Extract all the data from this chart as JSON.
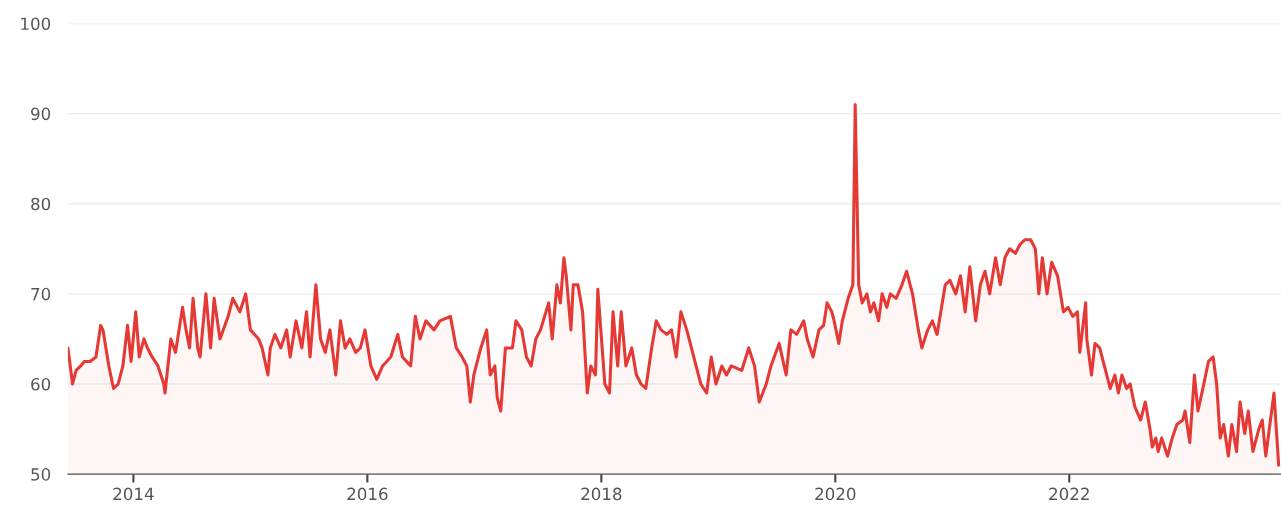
{
  "chart_data": {
    "type": "area",
    "xlim": [
      2013.44,
      2023.81
    ],
    "xticks": [
      2014,
      2016,
      2018,
      2020,
      2022
    ],
    "ylim": [
      50,
      100
    ],
    "yticks": [
      50,
      60,
      70,
      80,
      90,
      100
    ],
    "grid": "y",
    "series": [
      {
        "color": "#e53935",
        "x": [
          2013.44,
          2013.48,
          2013.51,
          2013.55,
          2013.58,
          2013.63,
          2013.68,
          2013.72,
          2013.74,
          2013.79,
          2013.83,
          2013.87,
          2013.91,
          2013.95,
          2013.98,
          2014.02,
          2014.05,
          2014.09,
          2014.12,
          2014.16,
          2014.21,
          2014.26,
          2014.27,
          2014.32,
          2014.36,
          2014.42,
          2014.45,
          2014.48,
          2014.51,
          2014.55,
          2014.57,
          2014.62,
          2014.66,
          2014.69,
          2014.74,
          2014.81,
          2014.85,
          2014.91,
          2014.96,
          2015.0,
          2015.07,
          2015.1,
          2015.15,
          2015.17,
          2015.21,
          2015.26,
          2015.31,
          2015.34,
          2015.39,
          2015.44,
          2015.48,
          2015.51,
          2015.56,
          2015.6,
          2015.64,
          2015.68,
          2015.73,
          2015.77,
          2015.81,
          2015.85,
          2015.9,
          2015.94,
          2015.98,
          2016.03,
          2016.08,
          2016.13,
          2016.2,
          2016.26,
          2016.3,
          2016.37,
          2016.41,
          2016.45,
          2016.5,
          2016.57,
          2016.62,
          2016.71,
          2016.76,
          2016.81,
          2016.85,
          2016.88,
          2016.91,
          2016.97,
          2017.02,
          2017.05,
          2017.09,
          2017.11,
          2017.14,
          2017.18,
          2017.24,
          2017.27,
          2017.32,
          2017.36,
          2017.4,
          2017.44,
          2017.48,
          2017.55,
          2017.58,
          2017.62,
          2017.65,
          2017.68,
          2017.7,
          2017.74,
          2017.76,
          2017.8,
          2017.84,
          2017.88,
          2017.91,
          2017.95,
          2017.97,
          2018.03,
          2018.07,
          2018.1,
          2018.14,
          2018.17,
          2018.21,
          2018.26,
          2018.3,
          2018.34,
          2018.38,
          2018.43,
          2018.47,
          2018.51,
          2018.56,
          2018.6,
          2018.64,
          2018.68,
          2018.73,
          2018.77,
          2018.85,
          2018.9,
          2018.94,
          2018.98,
          2019.03,
          2019.07,
          2019.11,
          2019.2,
          2019.26,
          2019.31,
          2019.35,
          2019.41,
          2019.45,
          2019.52,
          2019.58,
          2019.62,
          2019.67,
          2019.73,
          2019.76,
          2019.81,
          2019.86,
          2019.9,
          2019.93,
          2019.97,
          2019.99,
          2020.03,
          2020.06,
          2020.11,
          2020.15,
          2020.17,
          2020.2,
          2020.23,
          2020.27,
          2020.3,
          2020.33,
          2020.37,
          2020.4,
          2020.44,
          2020.47,
          2020.52,
          2020.57,
          2020.61,
          2020.66,
          2020.71,
          2020.74,
          2020.79,
          2020.83,
          2020.87,
          2020.94,
          2020.98,
          2021.03,
          2021.07,
          2021.11,
          2021.15,
          2021.2,
          2021.24,
          2021.28,
          2021.32,
          2021.37,
          2021.41,
          2021.45,
          2021.49,
          2021.54,
          2021.58,
          2021.62,
          2021.67,
          2021.71,
          2021.74,
          2021.77,
          2021.81,
          2021.85,
          2021.9,
          2021.95,
          2021.99,
          2022.03,
          2022.07,
          2022.09,
          2022.14,
          2022.15,
          2022.19,
          2022.22,
          2022.26,
          2022.32,
          2022.35,
          2022.39,
          2022.42,
          2022.45,
          2022.49,
          2022.52,
          2022.56,
          2022.61,
          2022.65,
          2022.69,
          2022.71,
          2022.74,
          2022.76,
          2022.79,
          2022.84,
          2022.88,
          2022.92,
          2022.97,
          2022.99,
          2023.03,
          2023.07,
          2023.1,
          2023.15,
          2023.19,
          2023.23,
          2023.26,
          2023.29,
          2023.32,
          2023.36,
          2023.39,
          2023.43,
          2023.46,
          2023.5,
          2023.53,
          2023.57,
          2023.62,
          2023.65,
          2023.68,
          2023.72,
          2023.75,
          2023.79
        ],
        "values": [
          64,
          60,
          61.5,
          62,
          62.5,
          62.5,
          63,
          66.5,
          66,
          62,
          59.5,
          60,
          62,
          66.5,
          62.5,
          68,
          63,
          65,
          64,
          63,
          62,
          60,
          59,
          65,
          63.5,
          68.5,
          66,
          64,
          69.5,
          64,
          63,
          70,
          64,
          69.5,
          65,
          67.5,
          69.5,
          68,
          70,
          66,
          65,
          64,
          61,
          64,
          65.5,
          64,
          66,
          63,
          67,
          64,
          68,
          63,
          71,
          65,
          63.5,
          66,
          61,
          67,
          64,
          65,
          63.5,
          64,
          66,
          62,
          60.5,
          62,
          63,
          65.5,
          63,
          62,
          67.5,
          65,
          67,
          66,
          67,
          67.5,
          64,
          63,
          62,
          58,
          61,
          64,
          66,
          61,
          62,
          58.5,
          57,
          64,
          64,
          67,
          66,
          63,
          62,
          65,
          66,
          69,
          65,
          71,
          69,
          74,
          72,
          66,
          71,
          71,
          68,
          59,
          62,
          61,
          70.5,
          60,
          59,
          68,
          62,
          68,
          62,
          64,
          61,
          60,
          59.5,
          64,
          67,
          66,
          65.5,
          66,
          63,
          68,
          66,
          64,
          60,
          59,
          63,
          60,
          62,
          61,
          62,
          61.5,
          64,
          62,
          58,
          60,
          62,
          64.5,
          61,
          66,
          65.5,
          67,
          65,
          63,
          66,
          66.5,
          69,
          68,
          67,
          64.5,
          67,
          69.5,
          71,
          91,
          71,
          69,
          70,
          68,
          69,
          67,
          70,
          68.5,
          70,
          69.5,
          71,
          72.5,
          70,
          66,
          64,
          66,
          67,
          65.5,
          71,
          71.5,
          70,
          72,
          68,
          73,
          67,
          71,
          72.5,
          70,
          74,
          71,
          74,
          75,
          74.5,
          75.5,
          76,
          76,
          75,
          70,
          74,
          70,
          73.5,
          72,
          68,
          68.5,
          67.5,
          68,
          63.5,
          69,
          65,
          61,
          64.5,
          64,
          61,
          59.5,
          61,
          59,
          61,
          59.5,
          60,
          57.5,
          56,
          58,
          55,
          53,
          54,
          52.5,
          54,
          52,
          54,
          55.5,
          56,
          57,
          53.5,
          61,
          57,
          60,
          62.5,
          63,
          60,
          54,
          55.5,
          52,
          55.5,
          52.5,
          58,
          54.5,
          57,
          52.5,
          55,
          56,
          52,
          56,
          59,
          51
        ]
      }
    ]
  }
}
